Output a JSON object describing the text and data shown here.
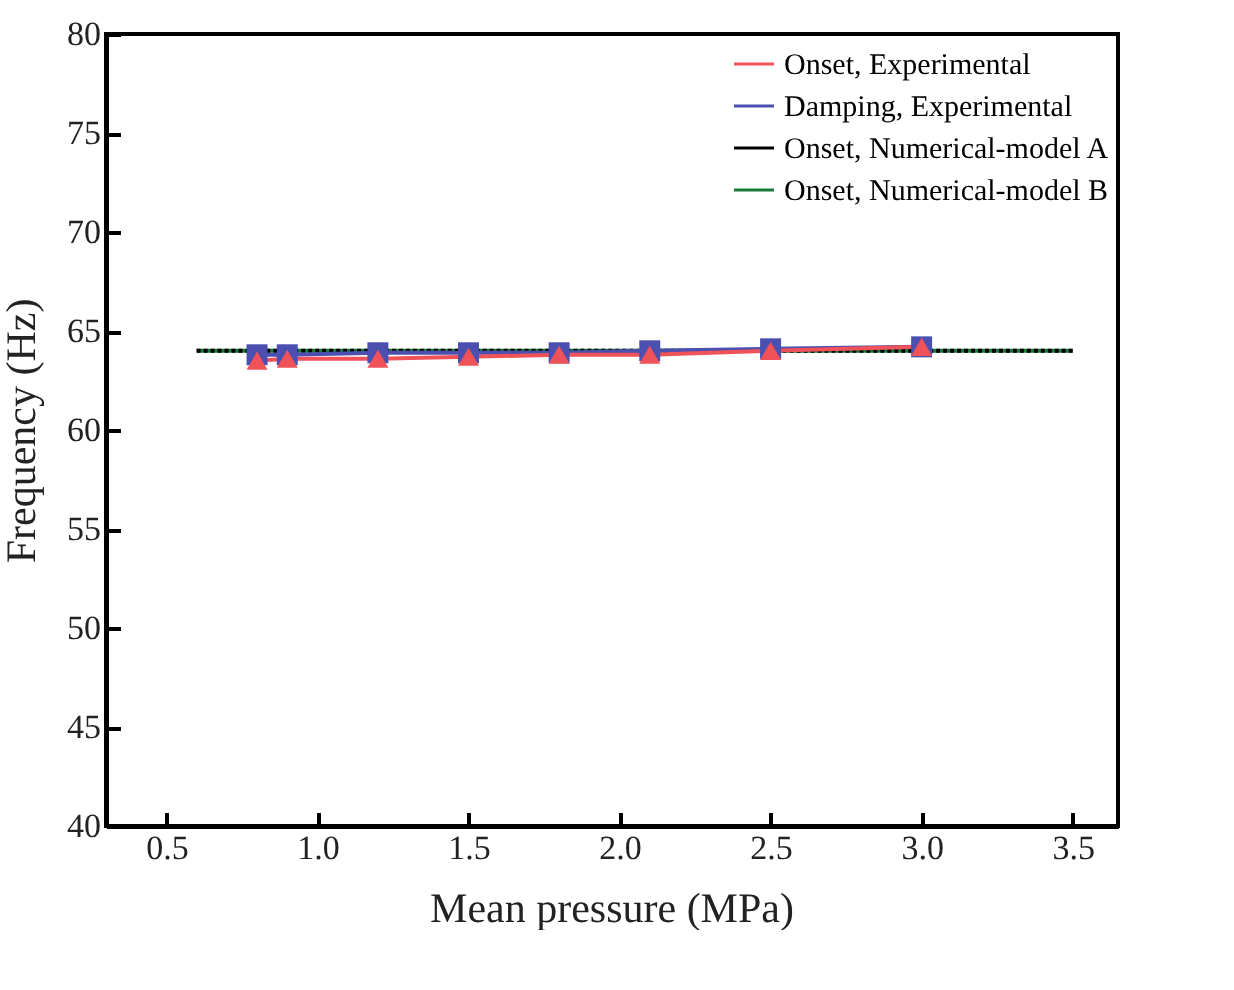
{
  "chart_data": {
    "type": "line",
    "xlabel": "Mean pressure (MPa)",
    "ylabel": "Frequency (Hz)",
    "xlim": [
      0.3,
      3.65
    ],
    "ylim": [
      40,
      80
    ],
    "xticks": [
      0.5,
      {
        "value": 1,
        "label": "1.0"
      },
      1.5,
      {
        "value": 2,
        "label": "2.0"
      },
      2.5,
      {
        "value": 3,
        "label": "3.0"
      },
      3.5
    ],
    "yticks": [
      40,
      45,
      50,
      55,
      60,
      65,
      70,
      75,
      80
    ],
    "legend": "top right",
    "grid": false,
    "series": [
      {
        "name": "Onset, Experimental",
        "color": "#f0525a",
        "marker": "triangle",
        "x": [
          0.8,
          0.9,
          1.2,
          1.5,
          1.8,
          2.1,
          2.5,
          3.0
        ],
        "values": [
          63.5,
          63.6,
          63.6,
          63.7,
          63.8,
          63.8,
          64.0,
          64.2
        ]
      },
      {
        "name": "Damping, Experimental",
        "color": "#4a4fb0",
        "marker": "square",
        "x": [
          0.8,
          0.9,
          1.2,
          1.5,
          1.8,
          2.1,
          2.5,
          3.0
        ],
        "values": [
          63.8,
          63.8,
          63.9,
          63.9,
          63.9,
          64.0,
          64.1,
          64.2
        ]
      },
      {
        "name": "Onset, Numerical-model A",
        "color": "#000000",
        "marker": "none",
        "line_style": "dotted",
        "x": [
          0.6,
          3.5
        ],
        "values": [
          64,
          64
        ]
      },
      {
        "name": "Onset, Numerical-model B",
        "color": "#1a7a3a",
        "marker": "none",
        "x": [
          0.6,
          3.5
        ],
        "values": [
          64,
          64
        ]
      }
    ]
  }
}
